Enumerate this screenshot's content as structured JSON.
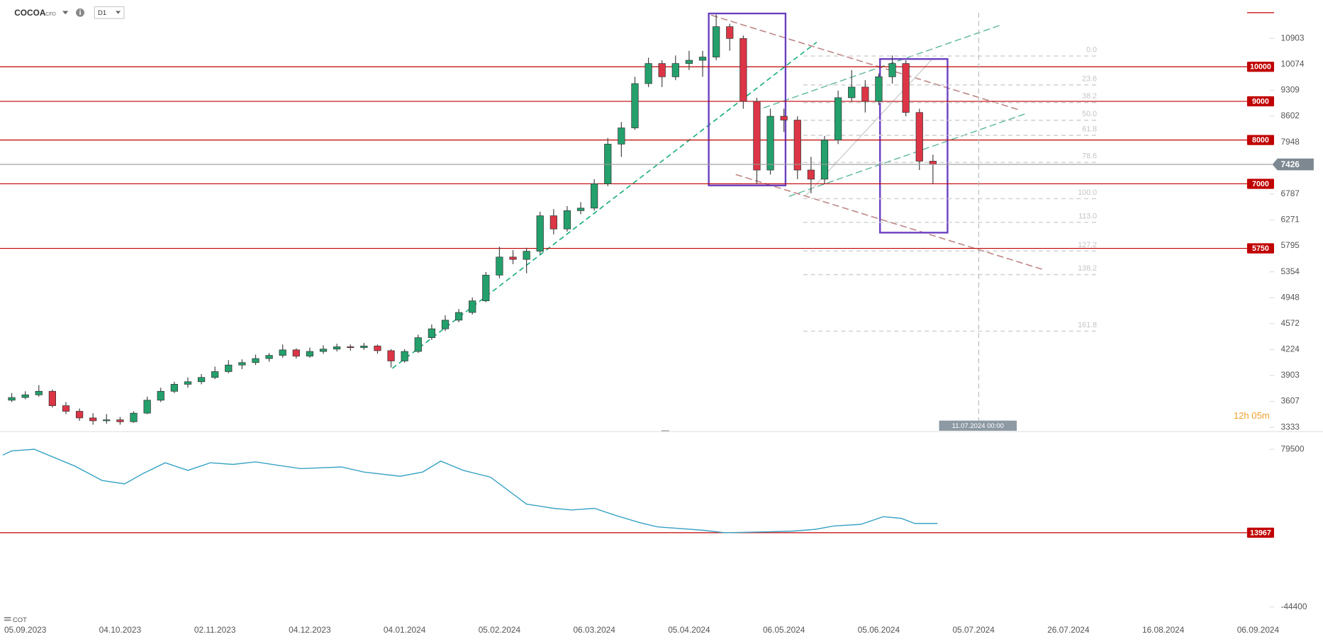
{
  "chart_data": [
    {
      "type": "candlestick",
      "title": "COCOA",
      "subtitle": "CFD",
      "timeframe": "D1",
      "xlim": [
        -5.6,
        270
      ],
      "ylim": [
        3290,
        12100
      ],
      "log_y": true,
      "yticks": [
        10903,
        10074,
        9309,
        8602,
        7948,
        6787,
        6271,
        5795,
        5354,
        4948,
        4572,
        4224,
        3903,
        3607,
        3333
      ],
      "colors": {
        "up": "#23a06c",
        "down": "#dc3545"
      },
      "candles": [
        {
          "x": -3,
          "o": 3620,
          "h": 3700,
          "l": 3600,
          "c": 3650
        },
        {
          "x": 0,
          "o": 3650,
          "h": 3720,
          "l": 3630,
          "c": 3680
        },
        {
          "x": 3,
          "o": 3680,
          "h": 3790,
          "l": 3660,
          "c": 3720
        },
        {
          "x": 6,
          "o": 3720,
          "h": 3740,
          "l": 3540,
          "c": 3560
        },
        {
          "x": 9,
          "o": 3560,
          "h": 3600,
          "l": 3470,
          "c": 3500
        },
        {
          "x": 12,
          "o": 3500,
          "h": 3530,
          "l": 3400,
          "c": 3430
        },
        {
          "x": 15,
          "o": 3430,
          "h": 3480,
          "l": 3360,
          "c": 3400
        },
        {
          "x": 18,
          "o": 3400,
          "h": 3470,
          "l": 3370,
          "c": 3410
        },
        {
          "x": 21,
          "o": 3410,
          "h": 3440,
          "l": 3360,
          "c": 3390
        },
        {
          "x": 24,
          "o": 3390,
          "h": 3500,
          "l": 3380,
          "c": 3480
        },
        {
          "x": 27,
          "o": 3480,
          "h": 3660,
          "l": 3470,
          "c": 3620
        },
        {
          "x": 30,
          "o": 3620,
          "h": 3760,
          "l": 3600,
          "c": 3720
        },
        {
          "x": 33,
          "o": 3720,
          "h": 3830,
          "l": 3700,
          "c": 3800
        },
        {
          "x": 36,
          "o": 3800,
          "h": 3880,
          "l": 3760,
          "c": 3830
        },
        {
          "x": 39,
          "o": 3830,
          "h": 3920,
          "l": 3800,
          "c": 3880
        },
        {
          "x": 42,
          "o": 3880,
          "h": 4010,
          "l": 3860,
          "c": 3950
        },
        {
          "x": 45,
          "o": 3950,
          "h": 4090,
          "l": 3930,
          "c": 4030
        },
        {
          "x": 48,
          "o": 4030,
          "h": 4100,
          "l": 3980,
          "c": 4060
        },
        {
          "x": 51,
          "o": 4060,
          "h": 4160,
          "l": 4030,
          "c": 4110
        },
        {
          "x": 54,
          "o": 4110,
          "h": 4180,
          "l": 4070,
          "c": 4150
        },
        {
          "x": 57,
          "o": 4150,
          "h": 4290,
          "l": 4120,
          "c": 4220
        },
        {
          "x": 60,
          "o": 4220,
          "h": 4240,
          "l": 4110,
          "c": 4140
        },
        {
          "x": 63,
          "o": 4140,
          "h": 4250,
          "l": 4120,
          "c": 4200
        },
        {
          "x": 66,
          "o": 4200,
          "h": 4280,
          "l": 4170,
          "c": 4230
        },
        {
          "x": 69,
          "o": 4230,
          "h": 4300,
          "l": 4200,
          "c": 4260
        },
        {
          "x": 72,
          "o": 4260,
          "h": 4290,
          "l": 4210,
          "c": 4250
        },
        {
          "x": 75,
          "o": 4250,
          "h": 4310,
          "l": 4220,
          "c": 4270
        },
        {
          "x": 78,
          "o": 4270,
          "h": 4290,
          "l": 4170,
          "c": 4210
        },
        {
          "x": 81,
          "o": 4210,
          "h": 4230,
          "l": 4000,
          "c": 4080
        },
        {
          "x": 84,
          "o": 4080,
          "h": 4230,
          "l": 4060,
          "c": 4200
        },
        {
          "x": 87,
          "o": 4200,
          "h": 4420,
          "l": 4180,
          "c": 4380
        },
        {
          "x": 90,
          "o": 4380,
          "h": 4560,
          "l": 4350,
          "c": 4500
        },
        {
          "x": 93,
          "o": 4500,
          "h": 4690,
          "l": 4470,
          "c": 4620
        },
        {
          "x": 96,
          "o": 4620,
          "h": 4780,
          "l": 4590,
          "c": 4730
        },
        {
          "x": 99,
          "o": 4730,
          "h": 4950,
          "l": 4700,
          "c": 4900
        },
        {
          "x": 102,
          "o": 4900,
          "h": 5350,
          "l": 4880,
          "c": 5300
        },
        {
          "x": 105,
          "o": 5300,
          "h": 5780,
          "l": 5250,
          "c": 5600
        },
        {
          "x": 108,
          "o": 5600,
          "h": 5720,
          "l": 5480,
          "c": 5560
        },
        {
          "x": 111,
          "o": 5560,
          "h": 5760,
          "l": 5330,
          "c": 5700
        },
        {
          "x": 114,
          "o": 5700,
          "h": 6430,
          "l": 5650,
          "c": 6350
        },
        {
          "x": 117,
          "o": 6350,
          "h": 6480,
          "l": 6000,
          "c": 6100
        },
        {
          "x": 120,
          "o": 6100,
          "h": 6540,
          "l": 6050,
          "c": 6450
        },
        {
          "x": 123,
          "o": 6450,
          "h": 6620,
          "l": 6380,
          "c": 6500
        },
        {
          "x": 126,
          "o": 6500,
          "h": 7100,
          "l": 6450,
          "c": 7000
        },
        {
          "x": 129,
          "o": 7000,
          "h": 8050,
          "l": 6950,
          "c": 7900
        },
        {
          "x": 132,
          "o": 7900,
          "h": 8450,
          "l": 7600,
          "c": 8300
        },
        {
          "x": 135,
          "o": 8300,
          "h": 9700,
          "l": 8250,
          "c": 9500
        },
        {
          "x": 138,
          "o": 9500,
          "h": 10280,
          "l": 9400,
          "c": 10100
        },
        {
          "x": 141,
          "o": 10100,
          "h": 10200,
          "l": 9400,
          "c": 9700
        },
        {
          "x": 144,
          "o": 9700,
          "h": 10350,
          "l": 9600,
          "c": 10100
        },
        {
          "x": 147,
          "o": 10100,
          "h": 10500,
          "l": 9900,
          "c": 10200
        },
        {
          "x": 150,
          "o": 10200,
          "h": 10500,
          "l": 9700,
          "c": 10300
        },
        {
          "x": 153,
          "o": 10300,
          "h": 11720,
          "l": 10200,
          "c": 11300
        },
        {
          "x": 156,
          "o": 11300,
          "h": 11400,
          "l": 10500,
          "c": 10900
        },
        {
          "x": 159,
          "o": 10900,
          "h": 11000,
          "l": 8800,
          "c": 9000
        },
        {
          "x": 162,
          "o": 9000,
          "h": 9100,
          "l": 7000,
          "c": 7300
        },
        {
          "x": 165,
          "o": 7300,
          "h": 8800,
          "l": 7200,
          "c": 8600
        },
        {
          "x": 168,
          "o": 8600,
          "h": 8800,
          "l": 8200,
          "c": 8500
        },
        {
          "x": 171,
          "o": 8500,
          "h": 8600,
          "l": 7100,
          "c": 7300
        },
        {
          "x": 174,
          "o": 7300,
          "h": 7600,
          "l": 6800,
          "c": 7100
        },
        {
          "x": 177,
          "o": 7100,
          "h": 8100,
          "l": 7000,
          "c": 8000
        },
        {
          "x": 180,
          "o": 8000,
          "h": 9300,
          "l": 7900,
          "c": 9100
        },
        {
          "x": 183,
          "o": 9100,
          "h": 9900,
          "l": 9000,
          "c": 9400
        },
        {
          "x": 186,
          "o": 9400,
          "h": 9600,
          "l": 8700,
          "c": 9000
        },
        {
          "x": 189,
          "o": 9000,
          "h": 9800,
          "l": 8900,
          "c": 9700
        },
        {
          "x": 192,
          "o": 9700,
          "h": 10350,
          "l": 9500,
          "c": 10100
        },
        {
          "x": 195,
          "o": 10100,
          "h": 10200,
          "l": 8600,
          "c": 8700
        },
        {
          "x": 198,
          "o": 8700,
          "h": 8800,
          "l": 7300,
          "c": 7500
        },
        {
          "x": 201,
          "o": 7500,
          "h": 7650,
          "l": 7000,
          "c": 7426
        }
      ],
      "level_color": "#c00000",
      "levels": [
        10000,
        9000,
        8000,
        7000,
        5750
      ],
      "last_price": 7426,
      "fib_levels": [
        {
          "label": "0.0",
          "value": 10333
        },
        {
          "label": "23.6",
          "value": 9462
        },
        {
          "label": "38.2",
          "value": 8967
        },
        {
          "label": "50.0",
          "value": 8496
        },
        {
          "label": "61.8",
          "value": 8115
        },
        {
          "label": "78.6",
          "value": 7473
        },
        {
          "label": "100.0",
          "value": 6690
        },
        {
          "label": "113.0",
          "value": 6225
        },
        {
          "label": "127.2",
          "value": 5704
        },
        {
          "label": "138.2",
          "value": 5308
        },
        {
          "label": "161.8",
          "value": 4468
        }
      ],
      "time_marker": "11.07.2024 00:00",
      "countdown": "12h 05m"
    },
    {
      "type": "line",
      "title": "COT",
      "color": "#3aa3c4",
      "xlim": [
        -5.6,
        270
      ],
      "ylim": [
        -51000,
        88100
      ],
      "yticks": [
        79500,
        -44400
      ],
      "level_color": "#c00000",
      "levels": [
        13967
      ],
      "x": [
        -5,
        -3,
        2,
        11,
        17,
        22,
        26,
        31,
        36,
        41,
        46,
        51,
        56,
        61,
        70,
        75,
        83,
        88,
        92,
        97,
        103,
        108,
        111,
        117,
        121,
        126,
        131,
        136,
        140,
        150,
        155,
        164,
        170,
        175,
        179,
        185,
        190,
        194,
        197,
        202
      ],
      "values": [
        74900,
        78200,
        79500,
        66250,
        55000,
        52300,
        60300,
        68900,
        62900,
        68900,
        67600,
        69600,
        66900,
        64300,
        65600,
        61600,
        58300,
        61600,
        70200,
        62900,
        57600,
        44400,
        36400,
        33100,
        31800,
        33100,
        27200,
        21900,
        18500,
        15900,
        13900,
        14600,
        15200,
        16600,
        19200,
        20500,
        26500,
        25200,
        21200,
        21200
      ],
      "xticks": [
        {
          "value": 0,
          "label": "05.09.2023"
        },
        {
          "value": 21,
          "label": "04.10.2023"
        },
        {
          "value": 42,
          "label": "02.11.2023"
        },
        {
          "value": 63,
          "label": "04.12.2023"
        },
        {
          "value": 84,
          "label": "04.01.2024"
        },
        {
          "value": 105,
          "label": "05.02.2024"
        },
        {
          "value": 126,
          "label": "06.03.2024"
        },
        {
          "value": 147,
          "label": "05.04.2024"
        },
        {
          "value": 168,
          "label": "06.05.2024"
        },
        {
          "value": 189,
          "label": "05.06.2024"
        },
        {
          "value": 210,
          "label": "05.07.2024"
        },
        {
          "value": 231,
          "label": "26.07.2024"
        },
        {
          "value": 252,
          "label": "16.08.2024"
        },
        {
          "value": 273,
          "label": "06.09.2024"
        }
      ]
    }
  ]
}
